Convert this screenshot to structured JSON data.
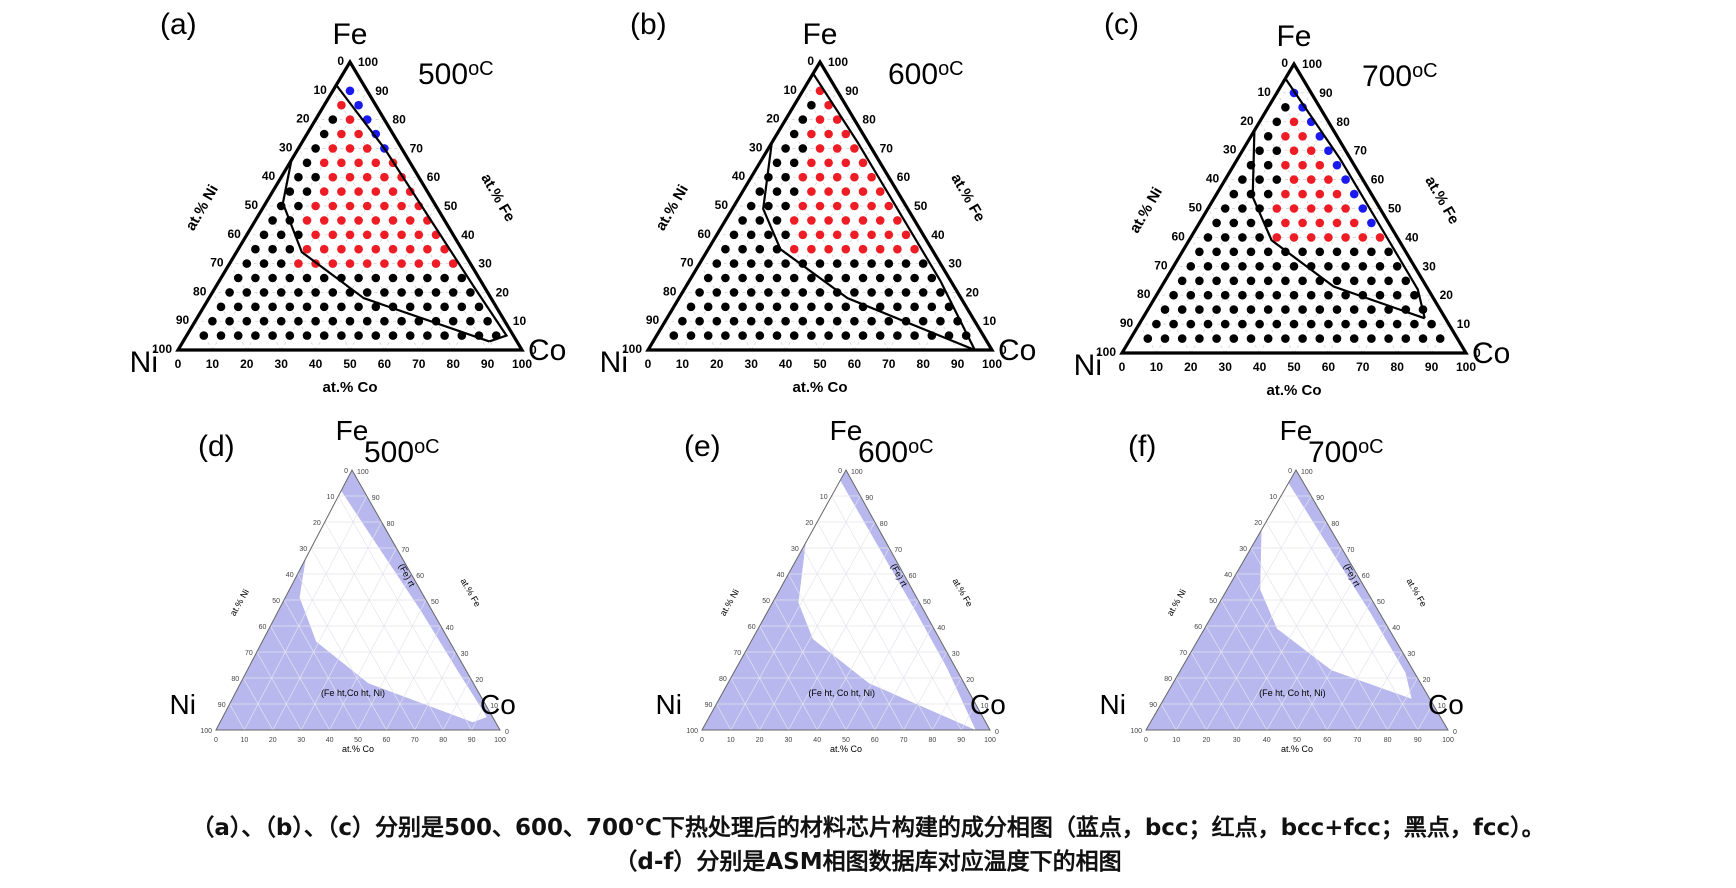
{
  "panels": [
    {
      "label": "(a)",
      "temp": "500",
      "unit": "oC",
      "top": "Fe",
      "left": "Ni",
      "right": "Co",
      "ni_axis": "at.% Ni",
      "fe_axis": "at.% Fe",
      "co_axis": "at.% Co",
      "kind": "experiment"
    },
    {
      "label": "(b)",
      "temp": "600",
      "unit": "oC",
      "top": "Fe",
      "left": "Ni",
      "right": "Co",
      "ni_axis": "at.% Ni",
      "fe_axis": "at.% Fe",
      "co_axis": "at.% Co",
      "kind": "experiment"
    },
    {
      "label": "(c)",
      "temp": "700",
      "unit": "oC",
      "top": "Fe",
      "left": "Ni",
      "right": "Co",
      "ni_axis": "at.% Ni",
      "fe_axis": "at.% Fe",
      "co_axis": "at.% Co",
      "kind": "experiment"
    },
    {
      "label": "(d)",
      "temp": "500",
      "unit": "oC",
      "top": "Fe",
      "left": "Ni",
      "right": "Co",
      "ni_axis": "at.% Ni",
      "fe_axis": "at.% Fe",
      "co_axis": "at.% Co",
      "kind": "database",
      "phase_fcc": "(Fe ht,Co ht, Ni)",
      "phase_bcc": "(Fe) rt"
    },
    {
      "label": "(e)",
      "temp": "600",
      "unit": "oC",
      "top": "Fe",
      "left": "Ni",
      "right": "Co",
      "ni_axis": "at.% Ni",
      "fe_axis": "at.% Fe",
      "co_axis": "at.% Co",
      "kind": "database",
      "phase_fcc": "(Fe ht, Co ht, Ni)",
      "phase_bcc": "(Fe) rt"
    },
    {
      "label": "(f)",
      "temp": "700",
      "unit": "oC",
      "top": "Fe",
      "left": "Ni",
      "right": "Co",
      "ni_axis": "at.% Ni",
      "fe_axis": "at.% Fe",
      "co_axis": "at.% Co",
      "kind": "database",
      "phase_fcc": "(Fe ht, Co ht, Ni)",
      "phase_bcc": "(Fe) rt"
    }
  ],
  "ticks": [
    "0",
    "10",
    "20",
    "30",
    "40",
    "50",
    "60",
    "70",
    "80",
    "90",
    "100"
  ],
  "colors": {
    "bcc": "#1a1aee",
    "bcc_fcc": "#ee1c24",
    "fcc": "#000000",
    "fcc_region": "#b8b8ee"
  },
  "caption": {
    "line1": "（a）、（b）、（c）分别是500、600、700℃下热处理后的材料芯片构建的成分相图（蓝点，bcc；红点，bcc+fcc；黑点，fcc）。",
    "line2": "（d-f）分别是ASM相图数据库对应温度下的相图"
  }
}
